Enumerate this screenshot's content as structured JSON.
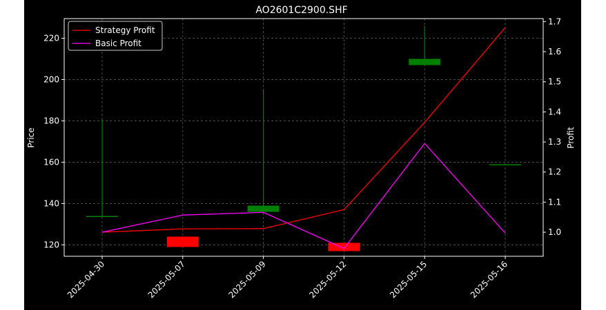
{
  "chart_data": {
    "type": "candlestick",
    "title": "AO2601C2900.SHF",
    "xlabel": "",
    "ylabel": "Price",
    "y2label": "Profit",
    "categories": [
      "2025-04-30",
      "2025-05-07",
      "2025-05-09",
      "2025-05-12",
      "2025-05-15",
      "2025-05-16"
    ],
    "ohlc": [
      {
        "date": "2025-04-30",
        "open": 134,
        "high": 181,
        "low": 134,
        "close": 134
      },
      {
        "date": "2025-05-07",
        "open": 124,
        "high": 124,
        "low": 119,
        "close": 119
      },
      {
        "date": "2025-05-09",
        "open": 136,
        "high": 195,
        "low": 136,
        "close": 139
      },
      {
        "date": "2025-05-12",
        "open": 121,
        "high": 121,
        "low": 117,
        "close": 117
      },
      {
        "date": "2025-05-15",
        "open": 207,
        "high": 226,
        "low": 207,
        "close": 210
      },
      {
        "date": "2025-05-16",
        "open": 159,
        "high": 159,
        "low": 159,
        "close": 159
      }
    ],
    "ylim": [
      114.5,
      229.5
    ],
    "yticks": [
      120,
      140,
      160,
      180,
      200,
      220
    ],
    "y2lim": [
      0.92,
      1.71
    ],
    "y2ticks": [
      1.0,
      1.1,
      1.2,
      1.3,
      1.4,
      1.5,
      1.6,
      1.7
    ],
    "series": [
      {
        "name": "Strategy Profit",
        "axis": "right",
        "color": "#ff0000",
        "values": [
          1.0,
          1.011,
          1.012,
          1.075,
          1.365,
          1.68
        ]
      },
      {
        "name": "Basic Profit",
        "axis": "right",
        "color": "#ff00ff",
        "values": [
          1.0,
          1.057,
          1.066,
          0.946,
          1.295,
          0.997
        ]
      }
    ],
    "colors": {
      "up": "#008000",
      "down": "#ff0000",
      "background": "#000000",
      "grid": "#808080"
    },
    "grid": true,
    "legend": "top-left"
  }
}
